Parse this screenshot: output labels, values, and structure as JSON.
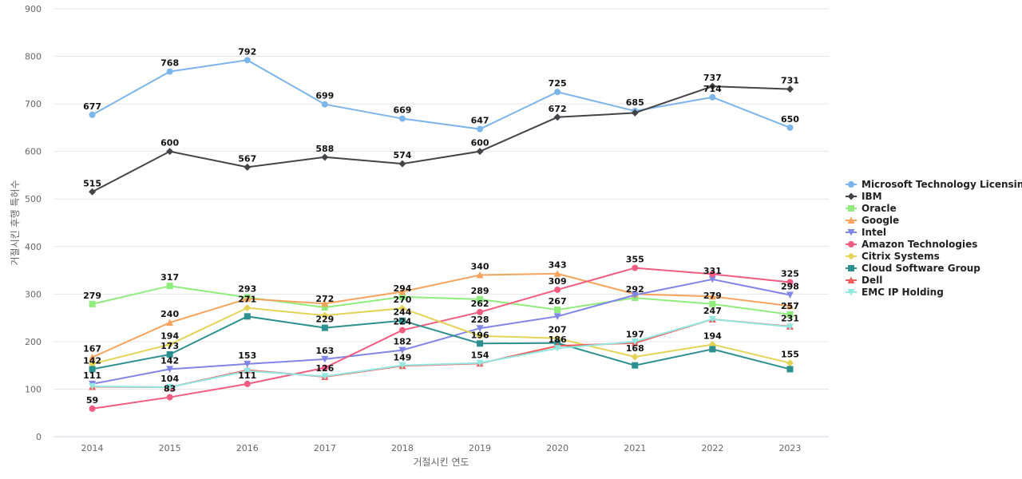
{
  "chart_data": {
    "type": "line",
    "title": "",
    "xlabel": "거절시킨 연도",
    "ylabel": "거절시킨 후행 특허수",
    "ylim": [
      0,
      900
    ],
    "yticks": [
      0,
      100,
      200,
      300,
      400,
      500,
      600,
      700,
      800,
      900
    ],
    "grid": true,
    "legend_position": "right",
    "x": [
      "2014",
      "2015",
      "2016",
      "2017",
      "2018",
      "2019",
      "2020",
      "2021",
      "2022",
      "2023"
    ],
    "series": [
      {
        "name": "Microsoft Technology Licensing",
        "color": "#7cb5ec",
        "marker": "circle",
        "values": [
          677,
          768,
          792,
          699,
          669,
          647,
          725,
          685,
          714,
          650
        ]
      },
      {
        "name": "IBM",
        "color": "#434348",
        "marker": "diamond",
        "values": [
          515,
          600,
          567,
          588,
          574,
          600,
          672,
          681,
          737,
          731
        ]
      },
      {
        "name": "Oracle",
        "color": "#90ed7d",
        "marker": "square",
        "values": [
          279,
          317,
          293,
          272,
          294,
          289,
          267,
          292,
          279,
          257
        ]
      },
      {
        "name": "Google",
        "color": "#f7a35c",
        "marker": "triangle",
        "values": [
          167,
          240,
          290,
          280,
          305,
          340,
          343,
          300,
          295,
          275
        ]
      },
      {
        "name": "Intel",
        "color": "#8085e9",
        "marker": "triangle-down",
        "values": [
          111,
          142,
          153,
          163,
          182,
          228,
          253,
          298,
          331,
          298
        ]
      },
      {
        "name": "Amazon Technologies",
        "color": "#f15c80",
        "marker": "circle",
        "values": [
          59,
          83,
          111,
          145,
          224,
          262,
          309,
          355,
          342,
          325
        ]
      },
      {
        "name": "Citrix Systems",
        "color": "#e4d354",
        "marker": "diamond",
        "values": [
          153,
          194,
          271,
          255,
          270,
          212,
          207,
          168,
          194,
          155
        ]
      },
      {
        "name": "Cloud Software Group",
        "color": "#2b908f",
        "marker": "square",
        "values": [
          142,
          173,
          253,
          229,
          244,
          196,
          197,
          150,
          184,
          142
        ]
      },
      {
        "name": "Dell",
        "color": "#f45b5b",
        "marker": "triangle",
        "values": [
          105,
          104,
          140,
          126,
          149,
          154,
          191,
          197,
          247,
          232
        ]
      },
      {
        "name": "EMC IP Holding",
        "color": "#91e8e1",
        "marker": "triangle-down",
        "values": [
          106,
          104,
          138,
          127,
          150,
          155,
          186,
          200,
          247,
          231
        ]
      }
    ],
    "data_labels": [
      {
        "x": "2014",
        "y": 677,
        "text": "677"
      },
      {
        "x": "2015",
        "y": 768,
        "text": "768"
      },
      {
        "x": "2016",
        "y": 792,
        "text": "792"
      },
      {
        "x": "2017",
        "y": 699,
        "text": "699"
      },
      {
        "x": "2018",
        "y": 669,
        "text": "669"
      },
      {
        "x": "2019",
        "y": 647,
        "text": "647"
      },
      {
        "x": "2020",
        "y": 725,
        "text": "725"
      },
      {
        "x": "2021",
        "y": 685,
        "text": "685"
      },
      {
        "x": "2022",
        "y": 714,
        "text": "714"
      },
      {
        "x": "2023",
        "y": 650,
        "text": "650"
      },
      {
        "x": "2014",
        "y": 515,
        "text": "515"
      },
      {
        "x": "2015",
        "y": 600,
        "text": "600"
      },
      {
        "x": "2016",
        "y": 567,
        "text": "567"
      },
      {
        "x": "2017",
        "y": 588,
        "text": "588"
      },
      {
        "x": "2018",
        "y": 574,
        "text": "574"
      },
      {
        "x": "2019",
        "y": 600,
        "text": "600"
      },
      {
        "x": "2020",
        "y": 672,
        "text": "672"
      },
      {
        "x": "2022",
        "y": 737,
        "text": "737"
      },
      {
        "x": "2023",
        "y": 731,
        "text": "731"
      },
      {
        "x": "2014",
        "y": 279,
        "text": "279"
      },
      {
        "x": "2015",
        "y": 317,
        "text": "317"
      },
      {
        "x": "2016",
        "y": 293,
        "text": "293"
      },
      {
        "x": "2017",
        "y": 272,
        "text": "272"
      },
      {
        "x": "2018",
        "y": 294,
        "text": "294"
      },
      {
        "x": "2019",
        "y": 340,
        "text": "340"
      },
      {
        "x": "2020",
        "y": 343,
        "text": "343"
      },
      {
        "x": "2021",
        "y": 355,
        "text": "355"
      },
      {
        "x": "2022",
        "y": 331,
        "text": "331"
      },
      {
        "x": "2023",
        "y": 325,
        "text": "325"
      },
      {
        "x": "2019",
        "y": 289,
        "text": "289"
      },
      {
        "x": "2020",
        "y": 309,
        "text": "309"
      },
      {
        "x": "2021",
        "y": 292,
        "text": "292"
      },
      {
        "x": "2022",
        "y": 279,
        "text": "279"
      },
      {
        "x": "2023",
        "y": 298,
        "text": "298"
      },
      {
        "x": "2016",
        "y": 271,
        "text": "271"
      },
      {
        "x": "2018",
        "y": 270,
        "text": "270"
      },
      {
        "x": "2019",
        "y": 262,
        "text": "262"
      },
      {
        "x": "2020",
        "y": 267,
        "text": "267"
      },
      {
        "x": "2023",
        "y": 257,
        "text": "257"
      },
      {
        "x": "2015",
        "y": 240,
        "text": "240"
      },
      {
        "x": "2017",
        "y": 229,
        "text": "229"
      },
      {
        "x": "2018",
        "y": 244,
        "text": "244"
      },
      {
        "x": "2019",
        "y": 228,
        "text": "228"
      },
      {
        "x": "2022",
        "y": 247,
        "text": "247"
      },
      {
        "x": "2023",
        "y": 231,
        "text": "231"
      },
      {
        "x": "2018",
        "y": 224,
        "text": "224"
      },
      {
        "x": "2020",
        "y": 207,
        "text": "207"
      },
      {
        "x": "2021",
        "y": 197,
        "text": "197"
      },
      {
        "x": "2015",
        "y": 194,
        "text": "194"
      },
      {
        "x": "2019",
        "y": 196,
        "text": "196"
      },
      {
        "x": "2020",
        "y": 186,
        "text": "186"
      },
      {
        "x": "2022",
        "y": 194,
        "text": "194"
      },
      {
        "x": "2014",
        "y": 167,
        "text": "167"
      },
      {
        "x": "2015",
        "y": 173,
        "text": "173"
      },
      {
        "x": "2016",
        "y": 153,
        "text": "153"
      },
      {
        "x": "2017",
        "y": 163,
        "text": "163"
      },
      {
        "x": "2018",
        "y": 182,
        "text": "182"
      },
      {
        "x": "2021",
        "y": 168,
        "text": "168"
      },
      {
        "x": "2014",
        "y": 142,
        "text": "142"
      },
      {
        "x": "2015",
        "y": 142,
        "text": "142"
      },
      {
        "x": "2018",
        "y": 149,
        "text": "149"
      },
      {
        "x": "2019",
        "y": 154,
        "text": "154"
      },
      {
        "x": "2023",
        "y": 155,
        "text": "155"
      },
      {
        "x": "2017",
        "y": 126,
        "text": "126"
      },
      {
        "x": "2014",
        "y": 111,
        "text": "111"
      },
      {
        "x": "2016",
        "y": 111,
        "text": "111"
      },
      {
        "x": "2015",
        "y": 104,
        "text": "104"
      },
      {
        "x": "2015",
        "y": 83,
        "text": "83"
      },
      {
        "x": "2014",
        "y": 59,
        "text": "59"
      }
    ]
  }
}
